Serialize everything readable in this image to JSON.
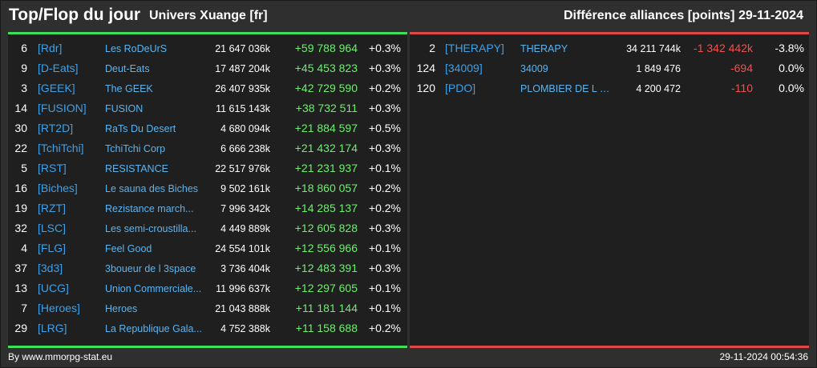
{
  "header": {
    "title": "Top/Flop du jour",
    "subtitle": "Univers Xuange [fr]",
    "right_title": "Différence alliances [points]",
    "date": "29-11-2024"
  },
  "colors": {
    "positive": "#6cf06c",
    "negative": "#f05050",
    "tag": "#3ea0e8",
    "top_bar": "#3ee05a",
    "flop_bar": "#e04848"
  },
  "top": [
    {
      "rank": "6",
      "tag": "[Rdr]",
      "name": "Les RoDeUrS",
      "points": "21 647 036k",
      "diff": "+59 788 964",
      "pct": "+0.3%"
    },
    {
      "rank": "9",
      "tag": "[D-Eats]",
      "name": "Deut-Eats",
      "points": "17 487 204k",
      "diff": "+45 453 823",
      "pct": "+0.3%"
    },
    {
      "rank": "3",
      "tag": "[GEEK]",
      "name": "The GEEK",
      "points": "26 407 935k",
      "diff": "+42 729 590",
      "pct": "+0.2%"
    },
    {
      "rank": "14",
      "tag": "[FUSION]",
      "name": "FUSION",
      "points": "11 615 143k",
      "diff": "+38 732 511",
      "pct": "+0.3%"
    },
    {
      "rank": "30",
      "tag": "[RT2D]",
      "name": "RaTs Du Desert",
      "points": "4 680 094k",
      "diff": "+21 884 597",
      "pct": "+0.5%"
    },
    {
      "rank": "22",
      "tag": "[TchiTchi]",
      "name": "TchiTchi Corp",
      "points": "6 666 238k",
      "diff": "+21 432 174",
      "pct": "+0.3%"
    },
    {
      "rank": "5",
      "tag": "[RST]",
      "name": "RESISTANCE",
      "points": "22 517 976k",
      "diff": "+21 231 937",
      "pct": "+0.1%"
    },
    {
      "rank": "16",
      "tag": "[Biches]",
      "name": "Le sauna des Biches",
      "points": "9 502 161k",
      "diff": "+18 860 057",
      "pct": "+0.2%"
    },
    {
      "rank": "19",
      "tag": "[RZT]",
      "name": "Rezistance march...",
      "points": "7 996 342k",
      "diff": "+14 285 137",
      "pct": "+0.2%"
    },
    {
      "rank": "32",
      "tag": "[LSC]",
      "name": "Les semi-croustilla...",
      "points": "4 449 889k",
      "diff": "+12 605 828",
      "pct": "+0.3%"
    },
    {
      "rank": "4",
      "tag": "[FLG]",
      "name": "Feel Good",
      "points": "24 554 101k",
      "diff": "+12 556 966",
      "pct": "+0.1%"
    },
    {
      "rank": "37",
      "tag": "[3d3]",
      "name": "3boueur de l 3space",
      "points": "3 736 404k",
      "diff": "+12 483 391",
      "pct": "+0.3%"
    },
    {
      "rank": "13",
      "tag": "[UCG]",
      "name": "Union Commerciale...",
      "points": "11 996 637k",
      "diff": "+12 297 605",
      "pct": "+0.1%"
    },
    {
      "rank": "7",
      "tag": "[Heroes]",
      "name": "Heroes",
      "points": "21 043 888k",
      "diff": "+11 181 144",
      "pct": "+0.1%"
    },
    {
      "rank": "29",
      "tag": "[LRG]",
      "name": "La Republique Gala...",
      "points": "4 752 388k",
      "diff": "+11 158 688",
      "pct": "+0.2%"
    }
  ],
  "flop": [
    {
      "rank": "2",
      "tag": "[THERAPY]",
      "name": "THERAPY",
      "points": "34 211 744k",
      "diff": "-1 342 442k",
      "pct": "-3.8%"
    },
    {
      "rank": "124",
      "tag": "[34009]",
      "name": "34009",
      "points": "1 849 476",
      "diff": "-694",
      "pct": "0.0%"
    },
    {
      "rank": "120",
      "tag": "[PDO]",
      "name": "PLOMBIER DE L O...",
      "points": "4 200 472",
      "diff": "-110",
      "pct": "0.0%"
    }
  ],
  "footer": {
    "credit": "By www.mmorpg-stat.eu",
    "timestamp": "29-11-2024 00:54:36"
  }
}
